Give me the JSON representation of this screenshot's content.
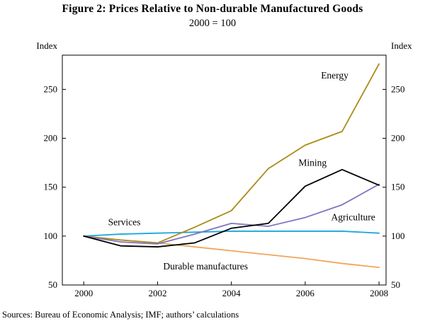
{
  "title": "Figure 2: Prices Relative to Non-durable Manufactured Goods",
  "subtitle": "2000 = 100",
  "source": "Sources: Bureau of Economic Analysis; IMF; authors’ calculations",
  "chart_data": {
    "type": "line",
    "title": "Figure 2: Prices Relative to Non-durable Manufactured Goods",
    "subtitle": "2000 = 100",
    "ylabel_left": "Index",
    "ylabel_right": "Index",
    "grid": false,
    "x": [
      2000,
      2001,
      2002,
      2003,
      2004,
      2005,
      2006,
      2007,
      2008
    ],
    "x_ticks": [
      2000,
      2002,
      2004,
      2006,
      2008
    ],
    "y_ticks": [
      50,
      100,
      150,
      200,
      250
    ],
    "xlim": [
      1999.42,
      2008.19
    ],
    "ylim": [
      50,
      285
    ],
    "series": [
      {
        "name": "Durable manufactures",
        "color": "#f2a45c",
        "values": [
          100,
          96,
          93,
          89,
          85,
          81,
          77,
          72,
          68
        ],
        "label": {
          "text": "Durable manufactures",
          "x": 2003.3,
          "y": 66
        }
      },
      {
        "name": "Services",
        "color": "#1ba6e0",
        "values": [
          100,
          102,
          103,
          104,
          105,
          105,
          105,
          105,
          103
        ],
        "label": {
          "text": "Services",
          "x": 2001.1,
          "y": 111
        }
      },
      {
        "name": "Energy",
        "color": "#ab8b17",
        "values": [
          100,
          96,
          93,
          109,
          126,
          169,
          193,
          207,
          276
        ],
        "label": {
          "text": "Energy",
          "x": 2006.8,
          "y": 261
        }
      },
      {
        "name": "Agriculture",
        "color": "#7f74c0",
        "values": [
          100,
          94,
          92,
          102,
          113,
          110,
          119,
          132,
          153
        ],
        "label": {
          "text": "Agriculture",
          "x": 2007.3,
          "y": 116
        }
      },
      {
        "name": "Mining",
        "color": "#000000",
        "values": [
          100,
          90,
          89,
          93,
          108,
          113,
          151,
          168,
          152
        ],
        "label": {
          "text": "Mining",
          "x": 2006.2,
          "y": 172
        }
      }
    ]
  }
}
